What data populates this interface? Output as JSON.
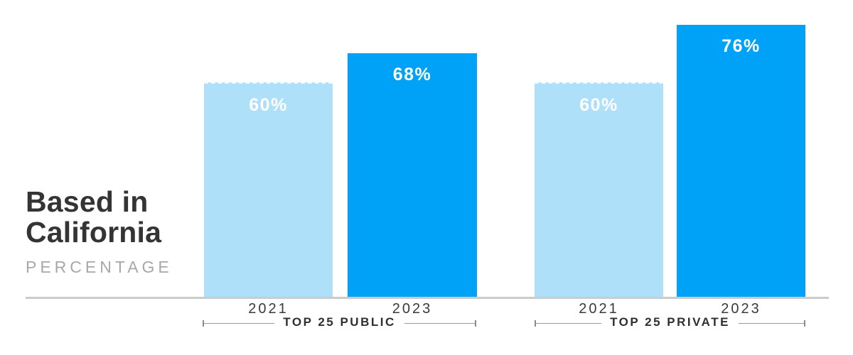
{
  "header": {
    "title_line1": "Based in",
    "title_line2": "California",
    "subtitle": "PERCENTAGE"
  },
  "chart_data": {
    "type": "bar",
    "title": "Based in California",
    "subtitle": "PERCENTAGE",
    "unit": "%",
    "ylim": [
      0,
      100
    ],
    "grid": false,
    "legend": false,
    "groups": [
      {
        "label": "TOP 25 PUBLIC",
        "categories": [
          "2021",
          "2023"
        ],
        "values": [
          60,
          68
        ],
        "data_labels": [
          "60%",
          "68%"
        ]
      },
      {
        "label": "TOP 25 PRIVATE",
        "categories": [
          "2021",
          "2023"
        ],
        "values": [
          60,
          76
        ],
        "data_labels": [
          "60%",
          "76%"
        ]
      }
    ],
    "colors": {
      "year_2021": "#AEE0FA",
      "year_2023": "#00A2F8",
      "axis_line": "#CBCBCB",
      "title_text": "#343434",
      "subtitle_text": "#A8A8A8",
      "value_label_text": "#FFFFFF"
    }
  }
}
